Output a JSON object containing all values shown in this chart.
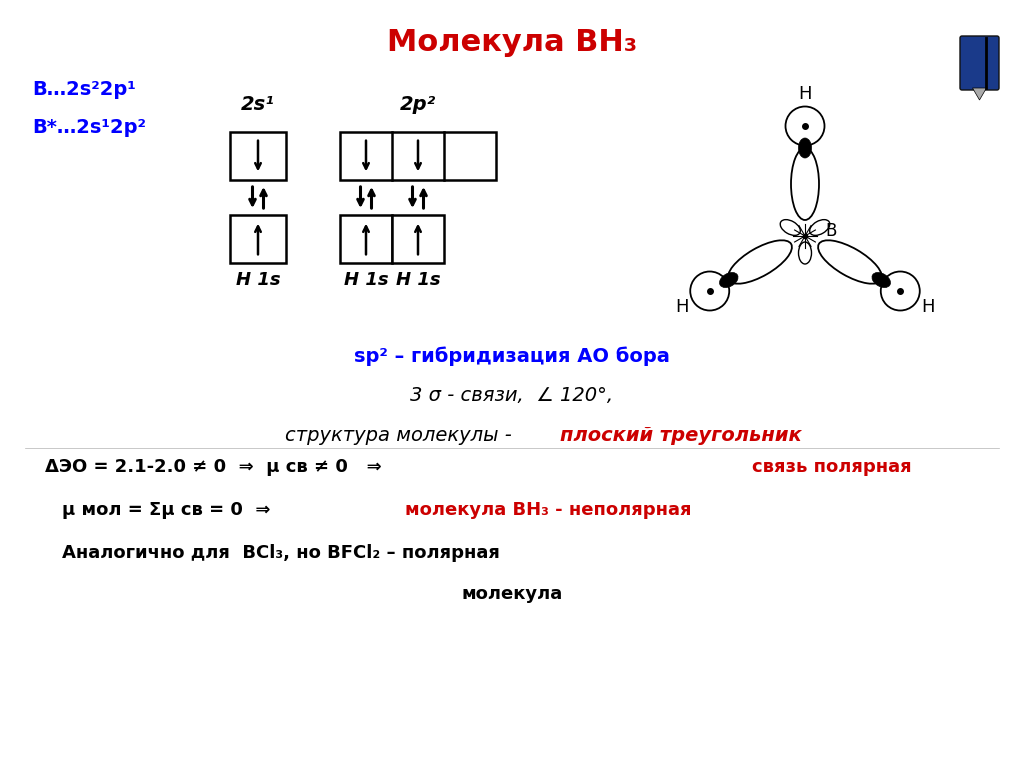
{
  "title": "Молекула BH₃",
  "title_color": "#cc0000",
  "title_fontsize": 22,
  "line1_blue": "B…2s²2p¹",
  "line2_blue": "B*…2s¹2p²",
  "label_2s1": "2s¹",
  "label_2p2": "2p²",
  "h1s_labels": [
    "H 1s",
    "H 1s",
    "H 1s"
  ],
  "sp2_line": "sp² – гибридизация АО бора",
  "sigma_line": "3 σ - связи,  ∠ 120°,",
  "struct_black": "структура молекулы - ",
  "struct_red": "плоский треугольник",
  "eo_black": "ΔЭО = 2.1-2.0 ≠ 0  ⇒  μ св ≠ 0   ⇒  ",
  "eo_red": "связь полярная",
  "mu_black": "μ мол = Σμ св = 0  ⇒ ",
  "mu_red": "молекула BH₃ - неполярная",
  "anal_line": "Аналогично для  BCl₃, но BFCl₂ – полярная",
  "mol_line": "молекула"
}
